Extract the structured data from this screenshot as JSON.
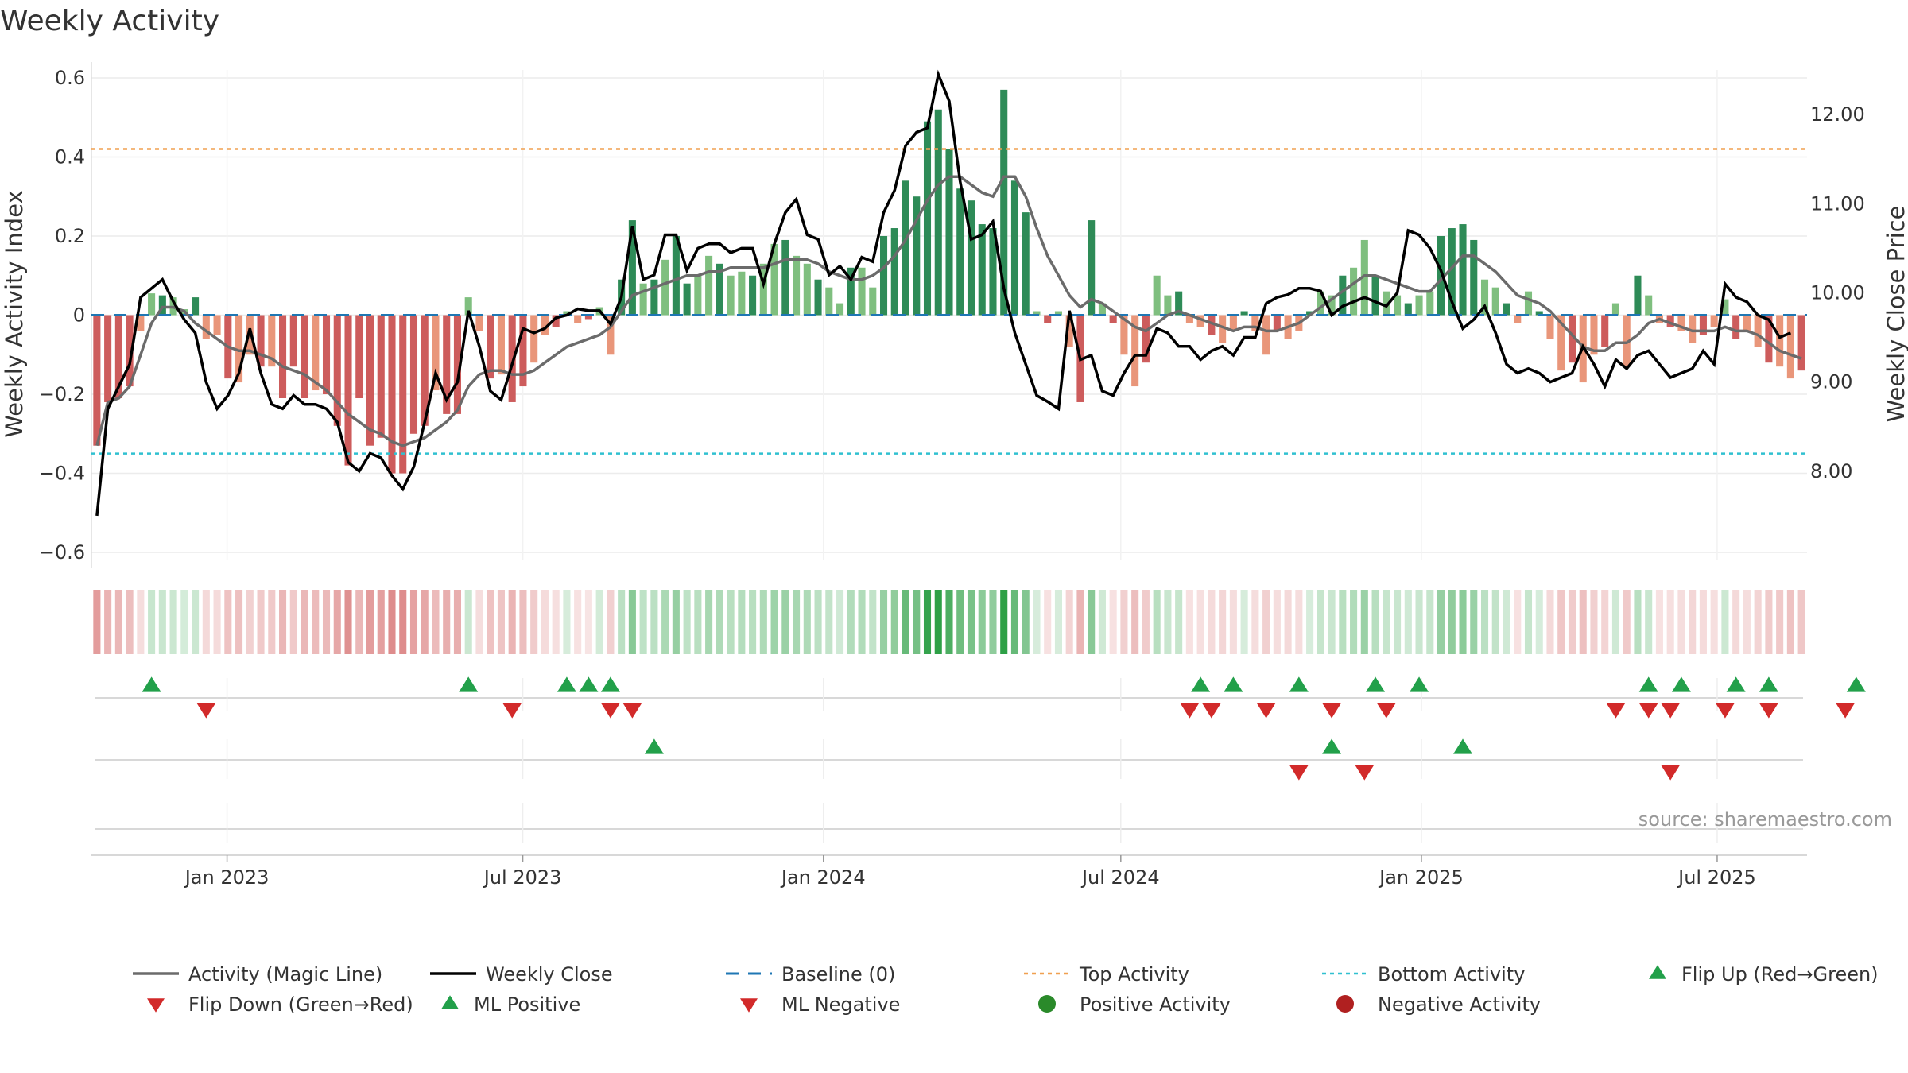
{
  "title": "Weekly Activity",
  "source": "source: sharemaestro.com",
  "colors": {
    "pos_dark": "#2e8b57",
    "pos_light": "#7fbf7f",
    "neg_dark": "#cd5c5c",
    "neg_light": "#e9967a",
    "close": "#000000",
    "magic": "#6b6b6b",
    "baseline": "#1f77b4",
    "top": "#f0a050",
    "bottom": "#30c0d0",
    "up": "#22a04a",
    "down": "#d22a2a"
  },
  "chart_data": {
    "type": "bar+line",
    "title": "Weekly Activity",
    "ylabel": "Weekly Activity Index",
    "y2label": "Weekly Close Price",
    "ylim": [
      -0.62,
      0.62
    ],
    "y2lim": [
      7.0,
      12.5
    ],
    "yticks": [
      "0.6",
      "0.4",
      "0.2",
      "0",
      "−0.2",
      "−0.4",
      "−0.6"
    ],
    "yticks_values": [
      0.6,
      0.4,
      0.2,
      0,
      -0.2,
      -0.4,
      -0.6
    ],
    "y2ticks": [
      "12.00",
      "11.00",
      "10.00",
      "9.00",
      "8.00"
    ],
    "y2ticks_values": [
      12,
      11,
      10,
      9,
      8
    ],
    "x_start": "2022-10-10",
    "x_end": "2025-08-25",
    "xticks": [
      "Jan 2023",
      "Jul 2023",
      "Jan 2024",
      "Jul 2024",
      "Jan 2025",
      "Jul 2025"
    ],
    "xticks_dates": [
      "2023-01-01",
      "2023-07-01",
      "2024-01-01",
      "2024-07-01",
      "2025-01-01",
      "2025-07-01"
    ],
    "top_activity": 0.42,
    "bottom_activity": -0.35,
    "baseline": 0,
    "activity": [
      -0.33,
      -0.22,
      -0.21,
      -0.18,
      -0.04,
      0.055,
      0.05,
      0.045,
      0.015,
      0.045,
      -0.06,
      -0.05,
      -0.16,
      -0.17,
      -0.1,
      -0.13,
      -0.13,
      -0.21,
      -0.13,
      -0.21,
      -0.19,
      -0.2,
      -0.28,
      -0.38,
      -0.21,
      -0.33,
      -0.31,
      -0.4,
      -0.4,
      -0.3,
      -0.28,
      -0.19,
      -0.25,
      -0.25,
      0.045,
      -0.04,
      -0.16,
      -0.15,
      -0.22,
      -0.18,
      -0.12,
      -0.05,
      -0.03,
      0.01,
      -0.02,
      -0.01,
      0.02,
      -0.1,
      0.09,
      0.24,
      0.08,
      0.09,
      0.14,
      0.2,
      0.08,
      0.1,
      0.15,
      0.13,
      0.1,
      0.11,
      0.1,
      0.13,
      0.18,
      0.19,
      0.15,
      0.13,
      0.09,
      0.07,
      0.03,
      0.12,
      0.12,
      0.07,
      0.2,
      0.22,
      0.34,
      0.3,
      0.49,
      0.52,
      0.42,
      0.32,
      0.29,
      0.23,
      0.22,
      0.57,
      0.34,
      0.26,
      0.01,
      -0.02,
      0.01,
      -0.08,
      -0.22,
      0.24,
      0.03,
      -0.02,
      -0.1,
      -0.18,
      -0.12,
      0.1,
      0.05,
      0.06,
      -0.02,
      -0.03,
      -0.05,
      -0.07,
      -0.04,
      0.01,
      -0.04,
      -0.1,
      -0.04,
      -0.06,
      -0.04,
      0.01,
      0.06,
      0.05,
      0.1,
      0.12,
      0.19,
      0.1,
      0.06,
      0.05,
      0.03,
      0.05,
      0.06,
      0.2,
      0.22,
      0.23,
      0.19,
      0.09,
      0.07,
      0.03,
      -0.02,
      0.06,
      0.01,
      -0.06,
      -0.14,
      -0.12,
      -0.17,
      -0.1,
      -0.08,
      0.03,
      -0.13,
      0.1,
      0.05,
      -0.02,
      -0.03,
      -0.04,
      -0.07,
      -0.05,
      -0.03,
      0.04,
      -0.06,
      -0.04,
      -0.08,
      -0.12,
      -0.13,
      -0.16,
      -0.14
    ],
    "weekly_close": [
      7.5,
      8.7,
      8.95,
      9.2,
      9.95,
      10.05,
      10.15,
      9.9,
      9.7,
      9.55,
      9.0,
      8.7,
      8.85,
      9.1,
      9.6,
      9.1,
      8.75,
      8.7,
      8.85,
      8.75,
      8.75,
      8.7,
      8.55,
      8.1,
      8.0,
      8.2,
      8.15,
      7.95,
      7.8,
      8.05,
      8.55,
      9.1,
      8.8,
      9.0,
      9.8,
      9.4,
      8.9,
      8.8,
      9.2,
      9.6,
      9.55,
      9.6,
      9.72,
      9.75,
      9.82,
      9.8,
      9.8,
      9.65,
      9.95,
      10.75,
      10.15,
      10.2,
      10.65,
      10.65,
      10.25,
      10.5,
      10.55,
      10.55,
      10.45,
      10.5,
      10.5,
      10.1,
      10.55,
      10.9,
      11.05,
      10.65,
      10.6,
      10.2,
      10.3,
      10.15,
      10.4,
      10.35,
      10.9,
      11.15,
      11.65,
      11.8,
      11.85,
      12.45,
      12.15,
      11.25,
      10.6,
      10.65,
      10.8,
      10.05,
      9.55,
      9.2,
      8.85,
      8.78,
      8.7,
      9.8,
      9.25,
      9.3,
      8.9,
      8.85,
      9.1,
      9.3,
      9.3,
      9.6,
      9.55,
      9.4,
      9.4,
      9.25,
      9.35,
      9.4,
      9.3,
      9.5,
      9.5,
      9.88,
      9.95,
      9.98,
      10.05,
      10.05,
      10.02,
      9.75,
      9.85,
      9.9,
      9.95,
      9.9,
      9.85,
      10.0,
      10.7,
      10.65,
      10.5,
      10.25,
      9.9,
      9.6,
      9.7,
      9.85,
      9.55,
      9.2,
      9.1,
      9.15,
      9.1,
      9.0,
      9.05,
      9.1,
      9.4,
      9.2,
      8.95,
      9.25,
      9.15,
      9.3,
      9.35,
      9.2,
      9.05,
      9.1,
      9.15,
      9.35,
      9.2,
      10.1,
      9.95,
      9.9,
      9.75,
      9.7,
      9.5,
      9.55
    ],
    "magic_line": [
      -0.33,
      -0.22,
      -0.21,
      -0.18,
      -0.1,
      -0.02,
      0.02,
      0.02,
      0.01,
      -0.02,
      -0.04,
      -0.06,
      -0.08,
      -0.09,
      -0.09,
      -0.1,
      -0.11,
      -0.13,
      -0.14,
      -0.15,
      -0.17,
      -0.19,
      -0.22,
      -0.25,
      -0.27,
      -0.29,
      -0.3,
      -0.32,
      -0.33,
      -0.32,
      -0.31,
      -0.29,
      -0.27,
      -0.24,
      -0.18,
      -0.15,
      -0.14,
      -0.14,
      -0.15,
      -0.15,
      -0.14,
      -0.12,
      -0.1,
      -0.08,
      -0.07,
      -0.06,
      -0.05,
      -0.03,
      0.01,
      0.05,
      0.06,
      0.07,
      0.08,
      0.09,
      0.1,
      0.1,
      0.11,
      0.11,
      0.12,
      0.12,
      0.12,
      0.12,
      0.13,
      0.14,
      0.14,
      0.14,
      0.13,
      0.11,
      0.1,
      0.09,
      0.09,
      0.1,
      0.12,
      0.15,
      0.19,
      0.24,
      0.29,
      0.33,
      0.35,
      0.35,
      0.33,
      0.31,
      0.3,
      0.35,
      0.35,
      0.3,
      0.22,
      0.15,
      0.1,
      0.05,
      0.02,
      0.04,
      0.03,
      0.01,
      -0.01,
      -0.03,
      -0.04,
      -0.02,
      0.0,
      0.01,
      0.0,
      -0.01,
      -0.02,
      -0.03,
      -0.04,
      -0.03,
      -0.03,
      -0.04,
      -0.04,
      -0.03,
      -0.02,
      0.0,
      0.02,
      0.04,
      0.06,
      0.08,
      0.1,
      0.1,
      0.09,
      0.08,
      0.07,
      0.06,
      0.06,
      0.09,
      0.12,
      0.15,
      0.15,
      0.13,
      0.11,
      0.08,
      0.05,
      0.04,
      0.03,
      0.01,
      -0.02,
      -0.05,
      -0.08,
      -0.09,
      -0.09,
      -0.07,
      -0.07,
      -0.05,
      -0.02,
      -0.01,
      -0.02,
      -0.03,
      -0.04,
      -0.04,
      -0.04,
      -0.03,
      -0.04,
      -0.04,
      -0.05,
      -0.07,
      -0.09,
      -0.1,
      -0.11
    ],
    "flip_up_weeks": [
      5,
      34,
      43,
      45,
      47,
      101,
      104,
      110,
      117,
      121,
      142,
      145,
      150,
      153,
      161
    ],
    "flip_down_weeks": [
      10,
      38,
      47,
      49,
      100,
      102,
      107,
      113,
      118,
      139,
      142,
      144,
      149,
      153,
      160
    ],
    "ml_positive_weeks": [
      51,
      113,
      125
    ],
    "ml_negative_weeks": [
      110,
      116,
      144
    ],
    "legend": [
      "Activity (Magic Line)",
      "Weekly Close",
      "Baseline (0)",
      "Top Activity",
      "Bottom Activity",
      "Flip Up (Red→Green)",
      "Flip Down (Green→Red)",
      "ML Positive",
      "ML Negative",
      "Positive Activity",
      "Negative Activity"
    ]
  }
}
